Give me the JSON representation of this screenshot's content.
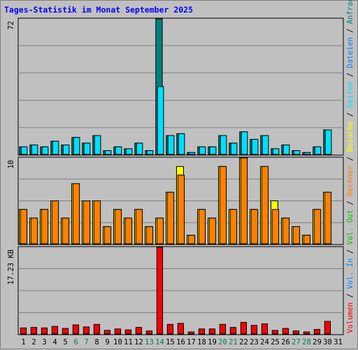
{
  "page": {
    "title": "Tages-Statistik im Monat September 2025"
  },
  "chart_data": [
    {
      "type": "bar",
      "title": "Tages-Statistik im Monat September 2025",
      "panel": "top",
      "ymax_label": "72",
      "ylim": [
        0,
        72
      ],
      "categories": [
        "1",
        "2",
        "3",
        "4",
        "5",
        "6",
        "7",
        "8",
        "9",
        "10",
        "11",
        "12",
        "13",
        "14",
        "15",
        "16",
        "17",
        "18",
        "19",
        "20",
        "21",
        "22",
        "23",
        "24",
        "25",
        "26",
        "27",
        "28",
        "29",
        "30",
        "31"
      ],
      "weekend_days": [
        "6",
        "7",
        "13",
        "14",
        "20",
        "21",
        "27",
        "28"
      ],
      "series": [
        {
          "name": "Anfragen",
          "color": "#008080",
          "values": [
            4,
            5,
            4,
            7,
            5,
            9,
            6,
            10,
            2,
            4,
            3,
            6,
            2,
            72,
            10,
            11,
            1,
            4,
            4,
            10,
            6,
            12,
            8,
            10,
            3,
            5,
            2,
            1,
            4,
            13,
            0
          ]
        },
        {
          "name": "Dateien",
          "color": "#0080ff",
          "values": [
            4,
            5,
            4,
            7,
            5,
            9,
            6,
            10,
            2,
            4,
            3,
            6,
            2,
            36,
            10,
            11,
            1,
            4,
            4,
            10,
            6,
            12,
            8,
            10,
            3,
            5,
            2,
            1,
            4,
            13,
            0
          ]
        },
        {
          "name": "Seiten",
          "color": "#00e0ff",
          "values": [
            4,
            5,
            4,
            7,
            5,
            9,
            6,
            10,
            2,
            4,
            3,
            6,
            2,
            36,
            10,
            11,
            1,
            4,
            4,
            10,
            6,
            12,
            8,
            10,
            3,
            5,
            2,
            1,
            4,
            13,
            0
          ]
        }
      ]
    },
    {
      "type": "bar",
      "panel": "middle",
      "ymax_label": "10",
      "ylim": [
        0,
        10
      ],
      "series": [
        {
          "name": "Besuche",
          "color": "#ffff00",
          "values": [
            4,
            3,
            4,
            5,
            3,
            7,
            5,
            5,
            2,
            4,
            3,
            4,
            2,
            3,
            6,
            9,
            1,
            4,
            3,
            9,
            4,
            10,
            4,
            9,
            5,
            3,
            2,
            1,
            4,
            6,
            0
          ]
        },
        {
          "name": "Rechner",
          "color": "#ff8000",
          "values": [
            4,
            3,
            4,
            5,
            3,
            7,
            5,
            5,
            2,
            4,
            3,
            4,
            2,
            3,
            6,
            8,
            1,
            4,
            3,
            9,
            4,
            10,
            4,
            9,
            4,
            3,
            2,
            1,
            4,
            6,
            0
          ]
        }
      ]
    },
    {
      "type": "bar",
      "panel": "bottom",
      "ymax_label": "17.23 KB",
      "ylim": [
        0,
        17.23
      ],
      "series": [
        {
          "name": "Volumen",
          "color": "#ff0000",
          "values": [
            1.2,
            1.3,
            1.2,
            1.5,
            1.1,
            1.8,
            1.4,
            1.9,
            0.7,
            1.0,
            0.8,
            1.3,
            0.6,
            17.23,
            1.9,
            2.1,
            0.4,
            1.0,
            1.0,
            1.9,
            1.3,
            2.3,
            1.7,
            2.0,
            0.7,
            1.1,
            0.6,
            0.4,
            0.9,
            2.5,
            0
          ]
        }
      ]
    }
  ],
  "legend": {
    "items": [
      {
        "text": "Volumen",
        "color": "#ff0000"
      },
      {
        "text": " / ",
        "color": "#000000"
      },
      {
        "text": "Vol. In",
        "color": "#0080ff"
      },
      {
        "text": " / ",
        "color": "#000000"
      },
      {
        "text": "Vol. Out",
        "color": "#00c000"
      },
      {
        "text": " / ",
        "color": "#000000"
      },
      {
        "text": "Rechner",
        "color": "#ff8000"
      },
      {
        "text": " / ",
        "color": "#000000"
      },
      {
        "text": "Besuche",
        "color": "#ffff00"
      },
      {
        "text": " / ",
        "color": "#000000"
      },
      {
        "text": "Seiten",
        "color": "#00e0ff"
      },
      {
        "text": " / ",
        "color": "#000000"
      },
      {
        "text": "Dateien",
        "color": "#0080ff"
      },
      {
        "text": " / ",
        "color": "#000000"
      },
      {
        "text": "Anfragen",
        "color": "#008080"
      }
    ]
  },
  "colors": {
    "grid": "#808080",
    "weekday_tick": "#000000",
    "weekend_tick": "#00804f",
    "background": "#c0c0c0"
  }
}
